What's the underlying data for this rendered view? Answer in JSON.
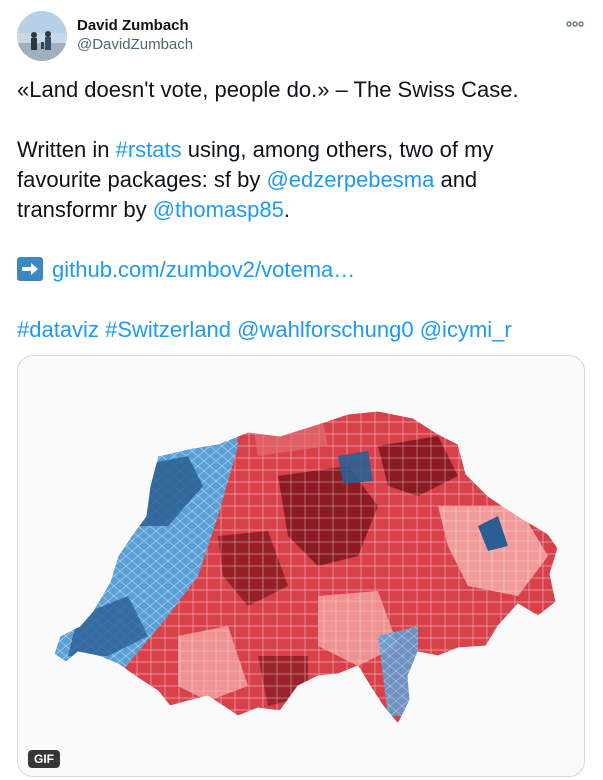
{
  "author": {
    "display_name": "David Zumbach",
    "handle": "@DavidZumbach"
  },
  "icons": {
    "avatar": "avatar-photo",
    "more": "more-dots-icon",
    "arrow": "right-arrow-icon"
  },
  "tweet": {
    "line1": "«Land doesn't vote, people do.» – The Swiss Case.",
    "line2_pre": "Written in ",
    "line2_tag": "#rstats",
    "line2_post": " using, among others, two of my",
    "line3_pre": "favourite packages: sf by ",
    "line3_mention": "@edzerpebesma",
    "line3_post": " and",
    "line4_pre": "transformr by ",
    "line4_mention": "@thomasp85",
    "line4_post": ".",
    "link": "github.com/zumbov2/votema…",
    "tag_dataviz": "#dataviz",
    "tag_switzerland": "#Switzerland",
    "mention_wahl": "@wahlforschung0",
    "mention_icymi": "@icymi_r"
  },
  "media": {
    "badge": "GIF",
    "description": "Map of Switzerland municipalities colored blue to red"
  },
  "colors": {
    "link": "#1d9bf0",
    "text": "#0f1419",
    "secondary": "#536471",
    "border": "#cfd9de"
  }
}
